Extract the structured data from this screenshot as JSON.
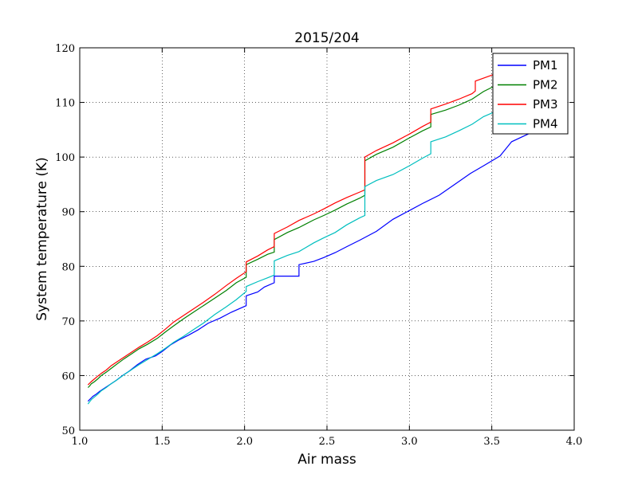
{
  "chart_data": {
    "type": "line",
    "title": "2015/204",
    "xlabel": "Air mass",
    "ylabel": "System temperature (K)",
    "xlim": [
      1.0,
      4.0
    ],
    "ylim": [
      50,
      120
    ],
    "xticks": [
      1.0,
      1.5,
      2.0,
      2.5,
      3.0,
      3.5,
      4.0
    ],
    "xtick_labels": [
      "1.0",
      "1.5",
      "2.0",
      "2.5",
      "3.0",
      "3.5",
      "4.0"
    ],
    "yticks": [
      50,
      60,
      70,
      80,
      90,
      100,
      110,
      120
    ],
    "ytick_labels": [
      "50",
      "60",
      "70",
      "80",
      "90",
      "100",
      "110",
      "120"
    ],
    "grid": true,
    "legend_position": "top-right",
    "series": [
      {
        "name": "PM1",
        "color": "#0000ff",
        "points": [
          [
            1.05,
            55.3
          ],
          [
            1.06,
            55.6
          ],
          [
            1.07,
            55.9
          ],
          [
            1.08,
            56.2
          ],
          [
            1.1,
            56.6
          ],
          [
            1.12,
            57.1
          ],
          [
            1.15,
            57.7
          ],
          [
            1.18,
            58.3
          ],
          [
            1.22,
            59.1
          ],
          [
            1.26,
            60.0
          ],
          [
            1.3,
            60.8
          ],
          [
            1.35,
            62.0
          ],
          [
            1.4,
            63.0
          ],
          [
            1.46,
            63.6
          ],
          [
            1.5,
            64.4
          ],
          [
            1.55,
            65.6
          ],
          [
            1.6,
            66.5
          ],
          [
            1.66,
            67.4
          ],
          [
            1.72,
            68.4
          ],
          [
            1.78,
            69.6
          ],
          [
            1.85,
            70.5
          ],
          [
            1.92,
            71.6
          ],
          [
            2.01,
            72.8
          ],
          [
            2.01,
            74.6
          ],
          [
            2.08,
            75.3
          ],
          [
            2.12,
            76.2
          ],
          [
            2.18,
            77.0
          ],
          [
            2.18,
            78.2
          ],
          [
            2.26,
            78.2
          ],
          [
            2.26,
            78.2
          ],
          [
            2.33,
            78.2
          ],
          [
            2.33,
            80.3
          ],
          [
            2.42,
            80.9
          ],
          [
            2.48,
            81.6
          ],
          [
            2.55,
            82.5
          ],
          [
            2.62,
            83.6
          ],
          [
            2.7,
            84.8
          ],
          [
            2.8,
            86.4
          ],
          [
            2.9,
            88.6
          ],
          [
            3.0,
            90.2
          ],
          [
            3.08,
            91.5
          ],
          [
            3.18,
            93.0
          ],
          [
            3.28,
            95.1
          ],
          [
            3.37,
            97.0
          ],
          [
            3.45,
            98.4
          ],
          [
            3.55,
            100.2
          ],
          [
            3.62,
            102.8
          ],
          [
            3.72,
            104.2
          ],
          [
            3.8,
            105.5
          ],
          [
            3.86,
            106.0
          ]
        ]
      },
      {
        "name": "PM2",
        "color": "#008000",
        "points": [
          [
            1.05,
            57.8
          ],
          [
            1.06,
            58.1
          ],
          [
            1.07,
            58.5
          ],
          [
            1.09,
            58.9
          ],
          [
            1.11,
            59.4
          ],
          [
            1.13,
            60.0
          ],
          [
            1.16,
            60.6
          ],
          [
            1.19,
            61.3
          ],
          [
            1.23,
            62.2
          ],
          [
            1.27,
            63.1
          ],
          [
            1.31,
            63.9
          ],
          [
            1.36,
            64.9
          ],
          [
            1.41,
            65.7
          ],
          [
            1.47,
            66.8
          ],
          [
            1.52,
            68.0
          ],
          [
            1.57,
            69.1
          ],
          [
            1.63,
            70.4
          ],
          [
            1.69,
            71.6
          ],
          [
            1.75,
            72.8
          ],
          [
            1.82,
            74.2
          ],
          [
            1.89,
            75.6
          ],
          [
            1.95,
            77.0
          ],
          [
            2.01,
            78.0
          ],
          [
            2.01,
            80.3
          ],
          [
            2.08,
            81.3
          ],
          [
            2.14,
            82.2
          ],
          [
            2.18,
            82.6
          ],
          [
            2.18,
            84.9
          ],
          [
            2.26,
            86.2
          ],
          [
            2.33,
            87.1
          ],
          [
            2.42,
            88.5
          ],
          [
            2.48,
            89.3
          ],
          [
            2.55,
            90.3
          ],
          [
            2.62,
            91.4
          ],
          [
            2.7,
            92.5
          ],
          [
            2.73,
            93.0
          ],
          [
            2.73,
            99.3
          ],
          [
            2.8,
            100.5
          ],
          [
            2.9,
            101.8
          ],
          [
            3.0,
            103.5
          ],
          [
            3.08,
            104.8
          ],
          [
            3.13,
            105.5
          ],
          [
            3.13,
            107.8
          ],
          [
            3.22,
            108.6
          ],
          [
            3.3,
            109.5
          ],
          [
            3.38,
            110.6
          ],
          [
            3.45,
            112.0
          ],
          [
            3.55,
            113.5
          ],
          [
            3.65,
            115.0
          ],
          [
            3.75,
            116.4
          ],
          [
            3.86,
            117.7
          ]
        ]
      },
      {
        "name": "PM3",
        "color": "#ff0000",
        "points": [
          [
            1.05,
            58.3
          ],
          [
            1.06,
            58.6
          ],
          [
            1.07,
            58.9
          ],
          [
            1.09,
            59.4
          ],
          [
            1.11,
            59.9
          ],
          [
            1.13,
            60.4
          ],
          [
            1.16,
            61.0
          ],
          [
            1.19,
            61.8
          ],
          [
            1.23,
            62.6
          ],
          [
            1.27,
            63.4
          ],
          [
            1.31,
            64.2
          ],
          [
            1.36,
            65.2
          ],
          [
            1.41,
            66.1
          ],
          [
            1.47,
            67.3
          ],
          [
            1.52,
            68.5
          ],
          [
            1.57,
            69.8
          ],
          [
            1.63,
            71.0
          ],
          [
            1.69,
            72.2
          ],
          [
            1.75,
            73.4
          ],
          [
            1.82,
            74.9
          ],
          [
            1.89,
            76.5
          ],
          [
            1.95,
            77.8
          ],
          [
            2.01,
            79.0
          ],
          [
            2.01,
            80.8
          ],
          [
            2.08,
            81.9
          ],
          [
            2.14,
            83.0
          ],
          [
            2.18,
            83.6
          ],
          [
            2.18,
            86.0
          ],
          [
            2.26,
            87.2
          ],
          [
            2.33,
            88.4
          ],
          [
            2.42,
            89.6
          ],
          [
            2.48,
            90.5
          ],
          [
            2.55,
            91.6
          ],
          [
            2.62,
            92.6
          ],
          [
            2.7,
            93.6
          ],
          [
            2.73,
            94.0
          ],
          [
            2.73,
            100.0
          ],
          [
            2.8,
            101.2
          ],
          [
            2.9,
            102.6
          ],
          [
            3.0,
            104.2
          ],
          [
            3.08,
            105.6
          ],
          [
            3.13,
            106.4
          ],
          [
            3.13,
            108.8
          ],
          [
            3.22,
            109.7
          ],
          [
            3.3,
            110.6
          ],
          [
            3.38,
            111.6
          ],
          [
            3.4,
            112.1
          ],
          [
            3.4,
            113.9
          ],
          [
            3.5,
            115.0
          ],
          [
            3.62,
            116.4
          ],
          [
            3.75,
            117.8
          ],
          [
            3.86,
            119.0
          ]
        ]
      },
      {
        "name": "PM4",
        "color": "#00bfbf",
        "points": [
          [
            1.05,
            54.8
          ],
          [
            1.06,
            55.2
          ],
          [
            1.07,
            55.6
          ],
          [
            1.09,
            56.1
          ],
          [
            1.11,
            56.6
          ],
          [
            1.13,
            57.2
          ],
          [
            1.16,
            57.8
          ],
          [
            1.19,
            58.5
          ],
          [
            1.23,
            59.3
          ],
          [
            1.27,
            60.2
          ],
          [
            1.31,
            61.0
          ],
          [
            1.36,
            62.0
          ],
          [
            1.41,
            62.9
          ],
          [
            1.47,
            64.0
          ],
          [
            1.52,
            65.0
          ],
          [
            1.57,
            66.1
          ],
          [
            1.63,
            67.2
          ],
          [
            1.69,
            68.4
          ],
          [
            1.75,
            69.6
          ],
          [
            1.82,
            71.2
          ],
          [
            1.89,
            72.6
          ],
          [
            1.95,
            73.9
          ],
          [
            2.01,
            75.4
          ],
          [
            2.01,
            76.3
          ],
          [
            2.08,
            77.2
          ],
          [
            2.14,
            77.9
          ],
          [
            2.18,
            78.4
          ],
          [
            2.18,
            81.0
          ],
          [
            2.26,
            82.0
          ],
          [
            2.33,
            82.7
          ],
          [
            2.42,
            84.3
          ],
          [
            2.48,
            85.2
          ],
          [
            2.55,
            86.2
          ],
          [
            2.62,
            87.6
          ],
          [
            2.7,
            88.9
          ],
          [
            2.73,
            89.3
          ],
          [
            2.73,
            94.6
          ],
          [
            2.8,
            95.7
          ],
          [
            2.9,
            96.8
          ],
          [
            3.0,
            98.4
          ],
          [
            3.08,
            99.8
          ],
          [
            3.13,
            100.6
          ],
          [
            3.13,
            102.8
          ],
          [
            3.22,
            103.7
          ],
          [
            3.3,
            104.8
          ],
          [
            3.38,
            106.0
          ],
          [
            3.45,
            107.4
          ],
          [
            3.55,
            108.7
          ],
          [
            3.65,
            110.0
          ],
          [
            3.75,
            111.3
          ],
          [
            3.86,
            112.5
          ]
        ]
      }
    ]
  }
}
